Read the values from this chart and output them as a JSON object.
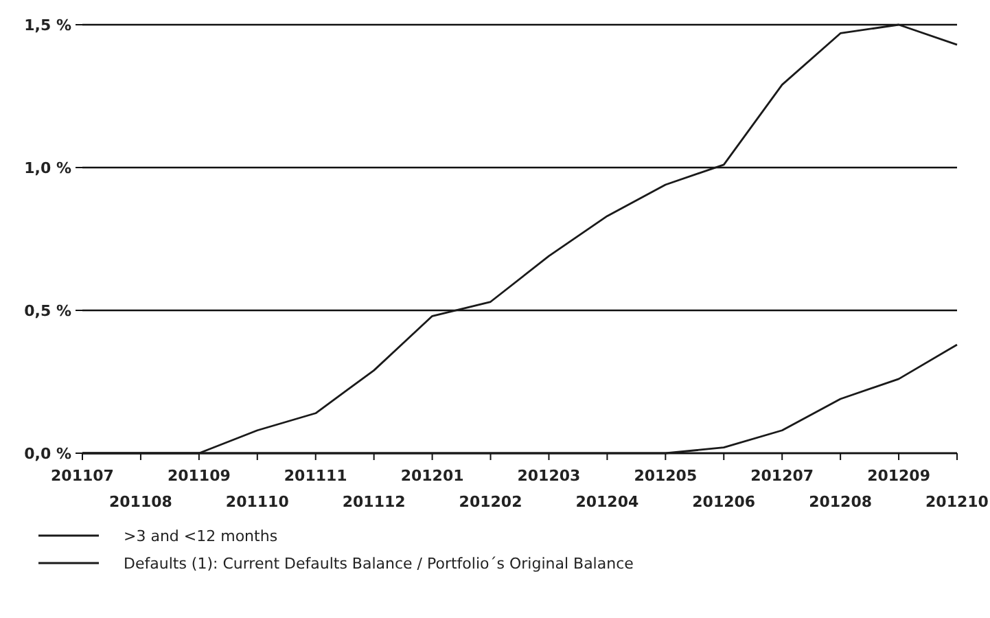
{
  "chart_data": {
    "type": "line",
    "categories": [
      "201107",
      "201108",
      "201109",
      "201110",
      "201111",
      "201112",
      "201201",
      "201202",
      "201203",
      "201204",
      "201205",
      "201206",
      "201207",
      "201208",
      "201209",
      "201210"
    ],
    "series": [
      {
        "name": ">3 and <12 months",
        "color": "#1a1a1a",
        "values": [
          0,
          0,
          0,
          0.08,
          0.14,
          0.29,
          0.48,
          0.53,
          0.69,
          0.83,
          0.94,
          1.01,
          1.29,
          1.47,
          1.5,
          1.43
        ]
      },
      {
        "name": "Defaults (1): Current Defaults Balance / Portfolio´s Original Balance",
        "color": "#1a1a1a",
        "values": [
          0,
          0,
          0,
          0,
          0,
          0,
          0,
          0,
          0,
          0,
          0,
          0.02,
          0.08,
          0.19,
          0.26,
          0.38
        ]
      }
    ],
    "ylim": [
      0,
      1.5
    ],
    "yticks": [
      {
        "value": 0,
        "label": "0,0 %"
      },
      {
        "value": 0.5,
        "label": "0,5 %"
      },
      {
        "value": 1,
        "label": "1,0 %"
      },
      {
        "value": 1.5,
        "label": "1,5 %"
      }
    ],
    "grid": "y",
    "legend": "bottom",
    "marker": "none",
    "line_style": "solid"
  }
}
